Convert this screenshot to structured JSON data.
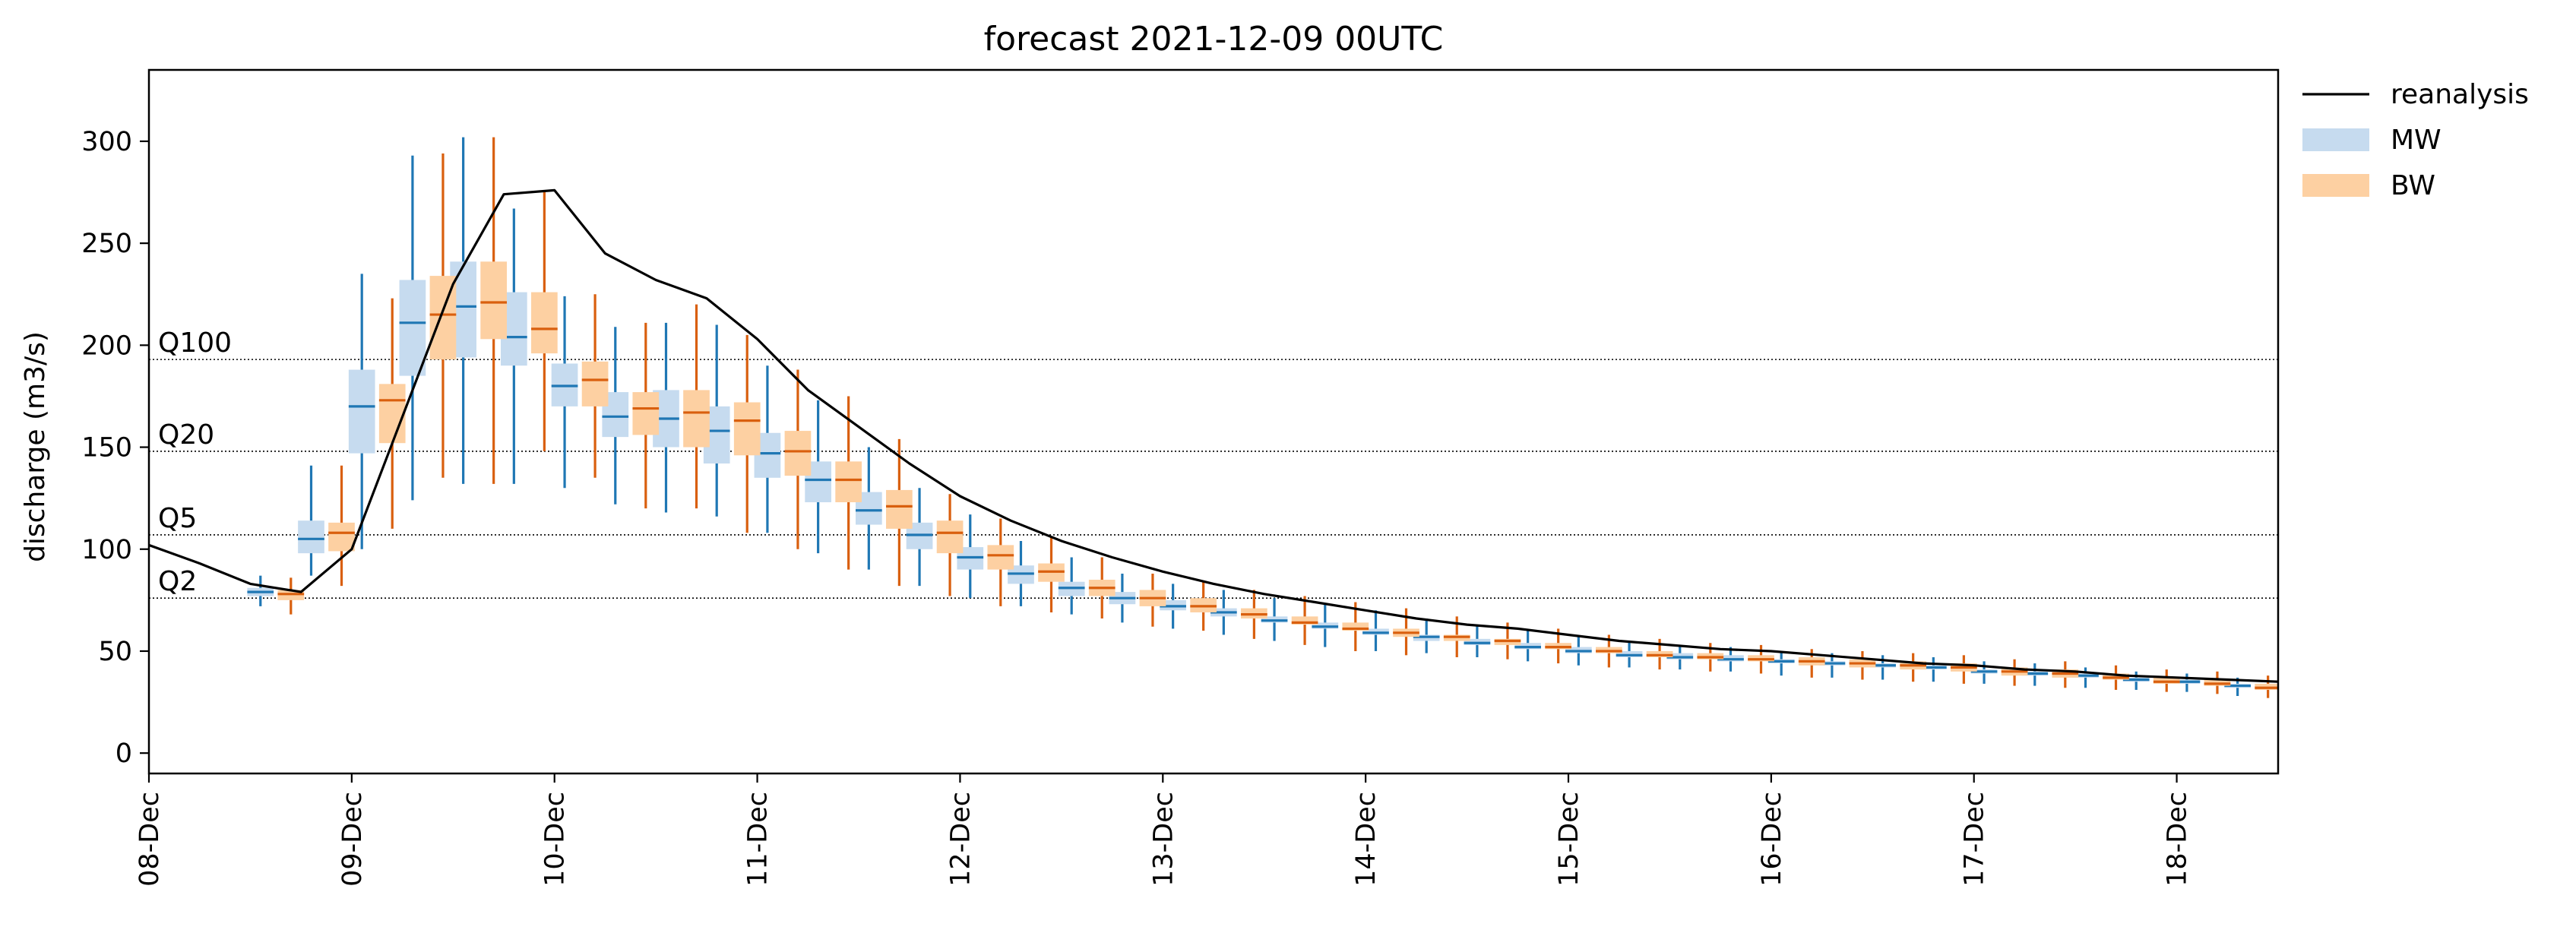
{
  "chart_data": {
    "type": "box",
    "title": "forecast 2021-12-09 00UTC",
    "xlabel": "",
    "ylabel": "discharge (m3/s)",
    "ylim": [
      -10,
      335
    ],
    "xlim": [
      0,
      10.5
    ],
    "x_unit": "days since 08-Dec",
    "x_ticks": [
      0,
      1,
      2,
      3,
      4,
      5,
      6,
      7,
      8,
      9,
      10
    ],
    "x_tick_labels": [
      "08-Dec",
      "09-Dec",
      "10-Dec",
      "11-Dec",
      "12-Dec",
      "13-Dec",
      "14-Dec",
      "15-Dec",
      "16-Dec",
      "17-Dec",
      "18-Dec"
    ],
    "y_ticks": [
      0,
      50,
      100,
      150,
      200,
      250,
      300
    ],
    "y_tick_labels": [
      "0",
      "50",
      "100",
      "150",
      "200",
      "250",
      "300"
    ],
    "legend_position": "outside-top-right",
    "legend": [
      {
        "label": "reanalysis",
        "kind": "line",
        "color": "#000000"
      },
      {
        "label": "MW",
        "kind": "patch",
        "color": "#c6dbef"
      },
      {
        "label": "BW",
        "kind": "patch",
        "color": "#fdd0a2"
      }
    ],
    "thresholds": [
      {
        "label": "Q100",
        "value": 193
      },
      {
        "label": "Q20",
        "value": 148
      },
      {
        "label": "Q5",
        "value": 107
      },
      {
        "label": "Q2",
        "value": 76
      }
    ],
    "reanalysis": {
      "color": "#000000",
      "x": [
        0,
        0.25,
        0.5,
        0.75,
        1.0,
        1.25,
        1.5,
        1.75,
        2.0,
        2.25,
        2.5,
        2.75,
        3.0,
        3.25,
        3.5,
        3.75,
        4.0,
        4.25,
        4.5,
        4.75,
        5.0,
        5.25,
        5.5,
        5.75,
        6.0,
        6.25,
        6.5,
        6.75,
        7.0,
        7.25,
        7.5,
        7.75,
        8.0,
        8.25,
        8.5,
        8.75,
        9.0,
        9.25,
        9.5,
        9.75,
        10.0,
        10.25,
        10.5
      ],
      "y": [
        102,
        93,
        83,
        79,
        100,
        165,
        230,
        274,
        276,
        245,
        232,
        223,
        203,
        178,
        160,
        142,
        126,
        114,
        104,
        96,
        89,
        83,
        78,
        74,
        70,
        66,
        63,
        61,
        58,
        55,
        53,
        51,
        50,
        48,
        46,
        44,
        43,
        41,
        40,
        38,
        37,
        36,
        35
      ]
    },
    "series": [
      {
        "name": "MW",
        "box_color": "#c6dbef",
        "line_color": "#1f77b4",
        "x": [
          0.55,
          0.8,
          1.05,
          1.3,
          1.55,
          1.8,
          2.05,
          2.3,
          2.55,
          2.8,
          3.05,
          3.3,
          3.55,
          3.8,
          4.05,
          4.3,
          4.55,
          4.8,
          5.05,
          5.3,
          5.55,
          5.8,
          6.05,
          6.3,
          6.55,
          6.8,
          7.05,
          7.3,
          7.55,
          7.8,
          8.05,
          8.3,
          8.55,
          8.8,
          9.05,
          9.3,
          9.55,
          9.8,
          10.05,
          10.3
        ],
        "whisker_low": [
          72,
          87,
          100,
          124,
          132,
          132,
          130,
          122,
          118,
          116,
          108,
          98,
          90,
          82,
          76,
          72,
          68,
          64,
          61,
          58,
          55,
          52,
          50,
          49,
          47,
          45,
          43,
          42,
          41,
          40,
          38,
          37,
          36,
          35,
          34,
          33,
          32,
          31,
          30,
          28
        ],
        "q1": [
          77,
          98,
          147,
          185,
          194,
          190,
          170,
          155,
          150,
          142,
          135,
          123,
          112,
          100,
          90,
          83,
          77,
          73,
          70,
          67,
          64,
          61,
          58,
          55,
          53,
          51,
          49,
          47,
          46,
          45,
          44,
          43,
          42,
          41,
          39,
          38,
          37,
          35,
          34,
          32
        ],
        "median": [
          79,
          105,
          170,
          211,
          219,
          204,
          180,
          165,
          164,
          158,
          147,
          134,
          119,
          107,
          96,
          88,
          81,
          76,
          72,
          69,
          65,
          62,
          59,
          57,
          54,
          52,
          50,
          48,
          47,
          46,
          45,
          44,
          43,
          42,
          40,
          39,
          38,
          36,
          35,
          33
        ],
        "q3": [
          81,
          114,
          188,
          232,
          241,
          226,
          191,
          177,
          178,
          170,
          157,
          143,
          128,
          113,
          101,
          92,
          84,
          79,
          75,
          71,
          67,
          64,
          61,
          58,
          56,
          54,
          52,
          50,
          49,
          48,
          46,
          45,
          44,
          43,
          41,
          40,
          39,
          37,
          36,
          34
        ],
        "whisker_high": [
          87,
          141,
          235,
          293,
          302,
          267,
          224,
          209,
          211,
          210,
          190,
          173,
          150,
          130,
          117,
          104,
          96,
          88,
          83,
          80,
          76,
          73,
          70,
          66,
          63,
          60,
          57,
          55,
          53,
          52,
          50,
          49,
          48,
          47,
          45,
          44,
          42,
          40,
          39,
          37
        ]
      },
      {
        "name": "BW",
        "box_color": "#fdd0a2",
        "line_color": "#d95f0e",
        "x": [
          0.7,
          0.95,
          1.2,
          1.45,
          1.7,
          1.95,
          2.2,
          2.45,
          2.7,
          2.95,
          3.2,
          3.45,
          3.7,
          3.95,
          4.2,
          4.45,
          4.7,
          4.95,
          5.2,
          5.45,
          5.7,
          5.95,
          6.2,
          6.45,
          6.7,
          6.95,
          7.2,
          7.45,
          7.7,
          7.95,
          8.2,
          8.45,
          8.7,
          8.95,
          9.2,
          9.45,
          9.7,
          9.95,
          10.2,
          10.45
        ],
        "whisker_low": [
          68,
          82,
          110,
          135,
          132,
          148,
          135,
          120,
          120,
          108,
          100,
          90,
          82,
          77,
          72,
          69,
          66,
          62,
          60,
          56,
          53,
          50,
          48,
          47,
          46,
          44,
          42,
          41,
          40,
          39,
          37,
          36,
          35,
          34,
          33,
          32,
          31,
          30,
          29,
          27
        ],
        "q1": [
          75,
          99,
          152,
          193,
          203,
          196,
          170,
          156,
          150,
          146,
          136,
          123,
          110,
          98,
          90,
          84,
          77,
          72,
          69,
          66,
          63,
          60,
          57,
          55,
          53,
          51,
          49,
          47,
          46,
          45,
          43,
          42,
          41,
          40,
          38,
          37,
          36,
          34,
          33,
          31
        ],
        "median": [
          78,
          108,
          173,
          215,
          221,
          208,
          183,
          169,
          167,
          163,
          148,
          134,
          121,
          108,
          97,
          89,
          81,
          76,
          72,
          68,
          64,
          61,
          59,
          57,
          55,
          52,
          50,
          48,
          47,
          46,
          45,
          44,
          43,
          42,
          40,
          39,
          37,
          35,
          34,
          32
        ],
        "q3": [
          80,
          113,
          181,
          234,
          241,
          226,
          192,
          177,
          178,
          172,
          158,
          143,
          129,
          114,
          102,
          93,
          85,
          80,
          76,
          71,
          67,
          64,
          61,
          58,
          56,
          54,
          52,
          50,
          49,
          48,
          47,
          46,
          45,
          44,
          42,
          41,
          39,
          37,
          36,
          34
        ],
        "whisker_high": [
          86,
          141,
          223,
          294,
          302,
          275,
          225,
          211,
          220,
          205,
          188,
          175,
          154,
          127,
          115,
          106,
          96,
          88,
          84,
          80,
          77,
          74,
          71,
          67,
          64,
          61,
          58,
          56,
          54,
          53,
          51,
          50,
          49,
          48,
          46,
          45,
          43,
          41,
          40,
          38
        ]
      }
    ]
  }
}
